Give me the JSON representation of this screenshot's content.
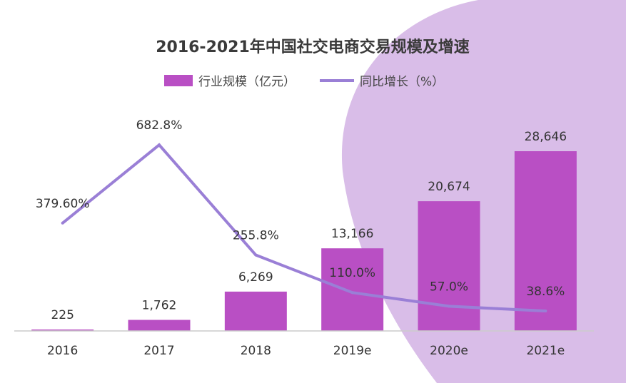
{
  "chart_data": {
    "type": "bar",
    "title": "2016-2021年中国社交电商交易规模及增速",
    "categories": [
      "2016",
      "2017",
      "2018",
      "2019e",
      "2020e",
      "2021e"
    ],
    "series": [
      {
        "name": "行业规模（亿元）",
        "type": "bar",
        "values": [
          225,
          1762,
          6269,
          13166,
          20674,
          28646
        ],
        "labels": [
          "225",
          "1,762",
          "6,269",
          "13,166",
          "20,674",
          "28,646"
        ]
      },
      {
        "name": "同比增长（%）",
        "type": "line",
        "values": [
          379.6,
          682.8,
          255.8,
          110.0,
          57.0,
          38.6
        ],
        "labels": [
          "379.60%",
          "682.8%",
          "255.8%",
          "110.0%",
          "57.0%",
          "38.6%"
        ]
      }
    ],
    "legend_position": "top",
    "grid": false
  },
  "colors": {
    "bar": "#b94fc4",
    "line": "#9a7fd6",
    "accent_shape": "#d9bde8",
    "title": "#3a3a3a"
  }
}
